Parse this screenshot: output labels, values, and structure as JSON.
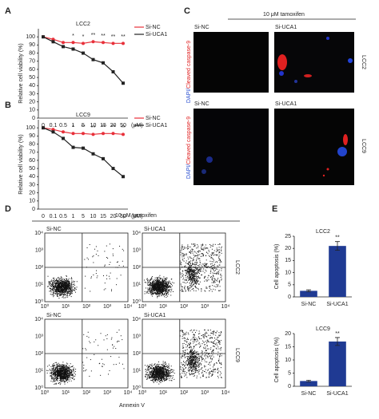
{
  "panel_labels": [
    "A",
    "B",
    "C",
    "D",
    "E"
  ],
  "chart_data": [
    {
      "type": "line",
      "title": "LCC2",
      "ylabel": "Relative cell viability (%)",
      "xlabel": "(μM)",
      "categories": [
        "0",
        "0.1",
        "0.5",
        "1",
        "5",
        "10",
        "15",
        "20",
        "50"
      ],
      "ylim": [
        0,
        110
      ],
      "yticks": [
        0,
        10,
        20,
        30,
        40,
        50,
        60,
        70,
        80,
        90,
        100
      ],
      "series": [
        {
          "name": "Si-NC",
          "color": "#e8303a",
          "marker": "circle",
          "values": [
            100,
            97,
            93,
            93,
            92,
            94,
            93,
            92,
            92
          ]
        },
        {
          "name": "Si-UCA1",
          "color": "#222222",
          "marker": "square",
          "values": [
            100,
            94,
            88,
            85,
            80,
            72,
            68,
            57,
            43
          ]
        }
      ],
      "significance": [
        null,
        null,
        null,
        "*",
        "*",
        "**",
        "**",
        "**",
        "**"
      ]
    },
    {
      "type": "line",
      "title": "LCC9",
      "ylabel": "Relative cell viability (%)",
      "xlabel": "(μM)",
      "categories": [
        "0",
        "0.1",
        "0.5",
        "1",
        "5",
        "10",
        "15",
        "20",
        "50"
      ],
      "ylim": [
        0,
        110
      ],
      "yticks": [
        0,
        10,
        20,
        30,
        40,
        50,
        60,
        70,
        80,
        90,
        100
      ],
      "series": [
        {
          "name": "Si-NC",
          "color": "#e8303a",
          "marker": "circle",
          "values": [
            100,
            98,
            95,
            93,
            93,
            92,
            93,
            93,
            92
          ]
        },
        {
          "name": "Si-UCA1",
          "color": "#222222",
          "marker": "square",
          "values": [
            100,
            95,
            87,
            76,
            75,
            68,
            62,
            50,
            40
          ]
        }
      ],
      "significance": [
        null,
        null,
        null,
        "*",
        "**",
        "**",
        "**",
        "**",
        "**"
      ]
    },
    {
      "type": "bar",
      "title": "LCC2",
      "ylabel": "Cell apoptosis (%)",
      "categories": [
        "Si-NC",
        "Si-UCA1"
      ],
      "values": [
        2.5,
        21
      ],
      "errors": [
        0.4,
        1.8
      ],
      "color": "#1f3a93",
      "ylim": [
        0,
        25
      ],
      "yticks": [
        0,
        5,
        10,
        15,
        20,
        25
      ],
      "significance": [
        null,
        "**"
      ]
    },
    {
      "type": "bar",
      "title": "LCC9",
      "ylabel": "Cell apoptosis (%)",
      "categories": [
        "Si-NC",
        "Si-UCA1"
      ],
      "values": [
        2,
        17
      ],
      "errors": [
        0.3,
        1.5
      ],
      "color": "#1f3a93",
      "ylim": [
        0,
        20
      ],
      "yticks": [
        0,
        5,
        10,
        15,
        20
      ],
      "significance": [
        null,
        "**"
      ]
    }
  ],
  "microscopy": {
    "title": "10 μM tamoxifen",
    "columns": [
      "Si-NC",
      "Si-UCA1"
    ],
    "rows": [
      "LCC2",
      "LCC9"
    ],
    "stain_dapi": "DAPI/",
    "stain_caspase": "Cleaved caspase-9"
  },
  "flow": {
    "title": "10 μM tamoxifen",
    "columns": [
      "Si-NC",
      "Si-UCA1"
    ],
    "rows": [
      "LCC2",
      "LCC9"
    ],
    "xlabel": "Annexin V",
    "ticks": [
      "10⁰",
      "10¹",
      "10²",
      "10³",
      "10⁴"
    ]
  }
}
